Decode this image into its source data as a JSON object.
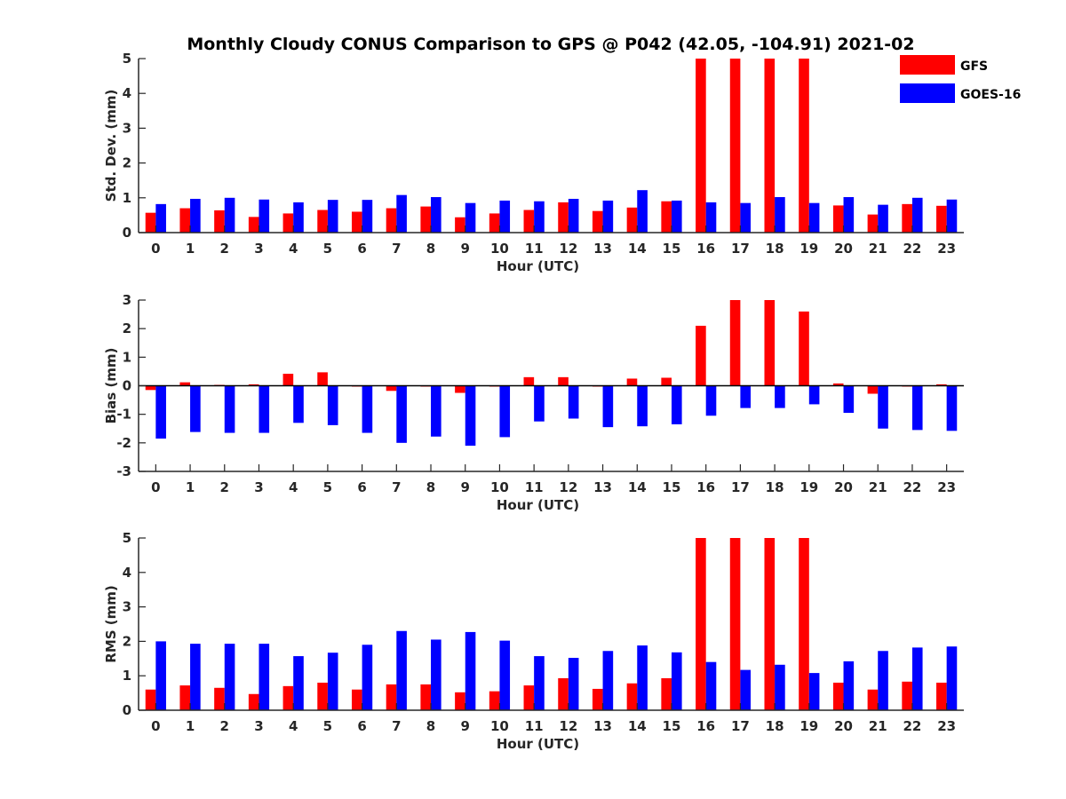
{
  "title": "Monthly Cloudy CONUS Comparison to GPS @ P042 (42.05, -104.91) 2021-02",
  "legend": [
    {
      "name": "GFS",
      "color": "#ff0000"
    },
    {
      "name": "GOES-16",
      "color": "#0000ff"
    }
  ],
  "chart_data": [
    {
      "type": "bar",
      "categories": [
        "0",
        "1",
        "2",
        "3",
        "4",
        "5",
        "6",
        "7",
        "8",
        "9",
        "10",
        "11",
        "12",
        "13",
        "14",
        "15",
        "16",
        "17",
        "18",
        "19",
        "20",
        "21",
        "22",
        "23"
      ],
      "xlabel": "Hour (UTC)",
      "ylabel": "Std. Dev. (mm)",
      "ylim": [
        0,
        5
      ],
      "yticks": [
        "0",
        "1",
        "2",
        "3",
        "4",
        "5"
      ],
      "legend_position": "top-right (outside)",
      "series": [
        {
          "name": "GFS",
          "color": "#ff0000",
          "values": [
            0.57,
            0.7,
            0.64,
            0.45,
            0.55,
            0.65,
            0.6,
            0.7,
            0.75,
            0.44,
            0.55,
            0.65,
            0.87,
            0.62,
            0.72,
            0.9,
            5,
            5,
            5,
            5,
            0.78,
            0.52,
            0.82,
            0.77
          ]
        },
        {
          "name": "GOES-16",
          "color": "#0000ff",
          "values": [
            0.82,
            0.97,
            1.0,
            0.95,
            0.87,
            0.94,
            0.94,
            1.08,
            1.02,
            0.85,
            0.92,
            0.9,
            0.97,
            0.92,
            1.22,
            0.92,
            0.87,
            0.85,
            1.02,
            0.85,
            1.02,
            0.8,
            1.0,
            0.95
          ]
        }
      ]
    },
    {
      "type": "bar",
      "categories": [
        "0",
        "1",
        "2",
        "3",
        "4",
        "5",
        "6",
        "7",
        "8",
        "9",
        "10",
        "11",
        "12",
        "13",
        "14",
        "15",
        "16",
        "17",
        "18",
        "19",
        "20",
        "21",
        "22",
        "23"
      ],
      "xlabel": "Hour (UTC)",
      "ylabel": "Bias (mm)",
      "ylim": [
        -3,
        3
      ],
      "yticks": [
        "-3",
        "-2",
        "-1",
        "0",
        "1",
        "2",
        "3"
      ],
      "series": [
        {
          "name": "GFS",
          "color": "#ff0000",
          "values": [
            -0.15,
            0.12,
            0.03,
            0.05,
            0.42,
            0.47,
            -0.03,
            -0.18,
            -0.03,
            -0.25,
            -0.03,
            0.3,
            0.3,
            -0.03,
            0.25,
            0.28,
            2.1,
            3.0,
            3.0,
            2.6,
            0.08,
            -0.28,
            -0.03,
            0.05
          ]
        },
        {
          "name": "GOES-16",
          "color": "#0000ff",
          "values": [
            -1.85,
            -1.62,
            -1.65,
            -1.65,
            -1.3,
            -1.38,
            -1.65,
            -2.0,
            -1.78,
            -2.1,
            -1.8,
            -1.25,
            -1.15,
            -1.45,
            -1.42,
            -1.35,
            -1.05,
            -0.78,
            -0.78,
            -0.65,
            -0.95,
            -1.5,
            -1.55,
            -1.58
          ]
        }
      ]
    },
    {
      "type": "bar",
      "categories": [
        "0",
        "1",
        "2",
        "3",
        "4",
        "5",
        "6",
        "7",
        "8",
        "9",
        "10",
        "11",
        "12",
        "13",
        "14",
        "15",
        "16",
        "17",
        "18",
        "19",
        "20",
        "21",
        "22",
        "23"
      ],
      "xlabel": "Hour (UTC)",
      "ylabel": "RMS (mm)",
      "ylim": [
        0,
        5
      ],
      "yticks": [
        "0",
        "1",
        "2",
        "3",
        "4",
        "5"
      ],
      "series": [
        {
          "name": "GFS",
          "color": "#ff0000",
          "values": [
            0.6,
            0.72,
            0.65,
            0.47,
            0.7,
            0.8,
            0.6,
            0.75,
            0.75,
            0.52,
            0.55,
            0.72,
            0.93,
            0.62,
            0.78,
            0.93,
            5,
            5,
            5,
            5,
            0.8,
            0.6,
            0.83,
            0.8
          ]
        },
        {
          "name": "GOES-16",
          "color": "#0000ff",
          "values": [
            2.0,
            1.93,
            1.93,
            1.93,
            1.57,
            1.67,
            1.9,
            2.3,
            2.05,
            2.27,
            2.02,
            1.57,
            1.52,
            1.72,
            1.88,
            1.68,
            1.4,
            1.17,
            1.32,
            1.08,
            1.42,
            1.72,
            1.82,
            1.85
          ]
        }
      ]
    }
  ]
}
